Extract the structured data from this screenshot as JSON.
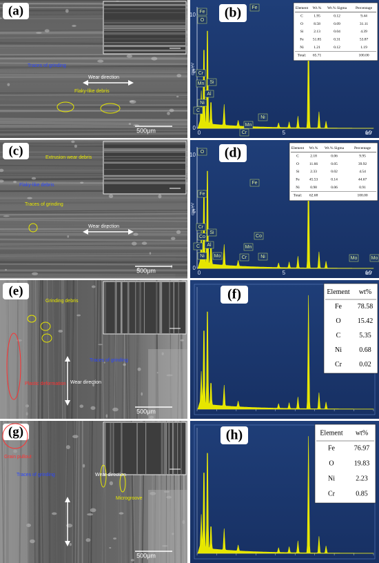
{
  "panels": [
    {
      "label": "(a)",
      "annotations": [
        "Traces of grinding",
        "Wear direction",
        "Flaky-like debris"
      ],
      "scale_bar": "500μm"
    },
    {
      "label": "(b)",
      "y_axis_label": "cps/eV",
      "x_axis_label": "keV",
      "yticks": [
        "0",
        "5",
        "10"
      ],
      "xticks": [
        "0",
        "5",
        "10"
      ],
      "peak_labels": [
        "Fe",
        "O",
        "Cr",
        "Mn",
        "Si",
        "Al",
        "Ni",
        "C",
        "Fe",
        "Mn",
        "Cr",
        "Ni"
      ],
      "table": {
        "header": [
          "Element",
          "Wt.%",
          "Wt.% Sigma",
          "Percentage"
        ],
        "rows": [
          [
            "C",
            "1.95",
            "0.12",
            "9.44"
          ],
          [
            "O",
            "8.58",
            "0.09",
            "31.11"
          ],
          [
            "Si",
            "2.13",
            "0.04",
            "4.39"
          ],
          [
            "Fe",
            "51.85",
            "0.31",
            "53.87"
          ],
          [
            "Ni",
            "1.21",
            "0.12",
            "1.19"
          ],
          [
            "Total:",
            "65.71",
            "100.00"
          ]
        ]
      }
    },
    {
      "label": "(c)",
      "annotations": [
        "Extrusion wear debris",
        "Flaky-like debris",
        "Traces of grinding",
        "Wear direction"
      ],
      "scale_bar": "500μm"
    },
    {
      "label": "(d)",
      "y_axis_label": "cps/eV",
      "x_axis_label": "keV",
      "yticks": [
        "0",
        "5",
        "10"
      ],
      "xticks": [
        "0",
        "5",
        "10"
      ],
      "peak_labels": [
        "O",
        "Fe",
        "Cr",
        "Co",
        "Si",
        "C",
        "Al",
        "Ni",
        "Mo",
        "Fe",
        "Co",
        "Mn",
        "Cr",
        "Ni",
        "Mo",
        "Mo"
      ],
      "table": {
        "header": [
          "Element",
          "Wt.%",
          "Wt.% Sigma",
          "Percentage"
        ],
        "rows": [
          [
            "C",
            "2.18",
            "0.06",
            "9.95"
          ],
          [
            "O",
            "11.66",
            "0.05",
            "39.92"
          ],
          [
            "Si",
            "2.33",
            "0.02",
            "4.54"
          ],
          [
            "Fe",
            "45.53",
            "0.14",
            "44.67"
          ],
          [
            "Ni",
            "0.98",
            "0.06",
            "0.91"
          ],
          [
            "Total:",
            "62.68",
            "100.00"
          ]
        ]
      }
    },
    {
      "label": "(e)",
      "annotations": [
        "Grinding debris",
        "Traces of grinding",
        "Wear direction",
        "Plastic deformation"
      ],
      "scale_bar": "500μm"
    },
    {
      "label": "(f)",
      "table": {
        "header": [
          "Element",
          "wt%"
        ],
        "rows": [
          [
            "Fe",
            "78.58"
          ],
          [
            "O",
            "15.42"
          ],
          [
            "C",
            "5.35"
          ],
          [
            "Ni",
            "0.68"
          ],
          [
            "Cr",
            "0.02"
          ]
        ]
      }
    },
    {
      "label": "(g)",
      "annotations": [
        "Grain pullout",
        "Traces of grinding",
        "Wear direction",
        "Microgroove"
      ],
      "scale_bar": "500μm"
    },
    {
      "label": "(h)",
      "table": {
        "header": [
          "Element",
          "wt%"
        ],
        "rows": [
          [
            "Fe",
            "76.97"
          ],
          [
            "O",
            "19.83"
          ],
          [
            "Ni",
            "2.23"
          ],
          [
            "Cr",
            "0.85"
          ]
        ]
      }
    }
  ]
}
